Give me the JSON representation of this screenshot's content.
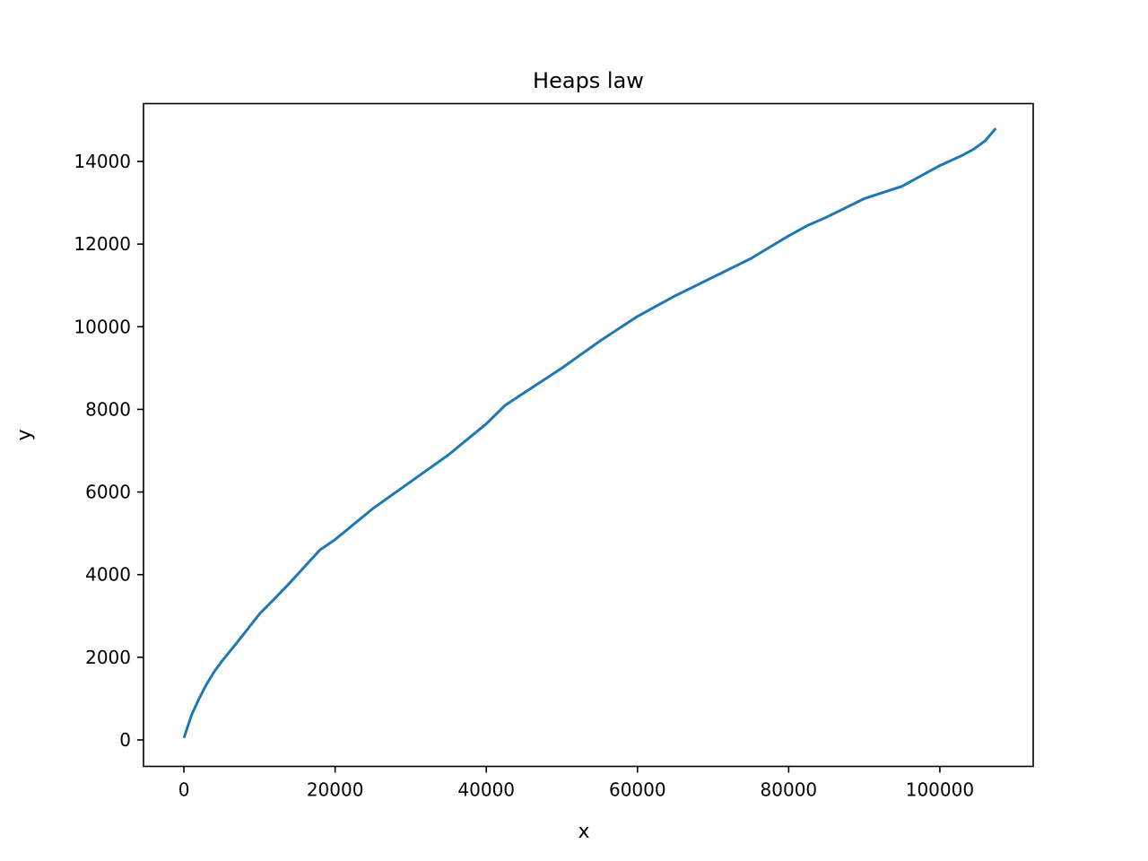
{
  "chart_data": {
    "type": "line",
    "title": "Heaps law",
    "xlabel": "x",
    "ylabel": "y",
    "xlim": [
      -5350,
      112350
    ],
    "ylim": [
      -640,
      15400
    ],
    "xticks": [
      0,
      20000,
      40000,
      60000,
      80000,
      100000
    ],
    "xtick_labels": [
      "0",
      "20000",
      "40000",
      "60000",
      "80000",
      "100000"
    ],
    "yticks": [
      0,
      2000,
      4000,
      6000,
      8000,
      10000,
      12000,
      14000
    ],
    "ytick_labels": [
      "0",
      "2000",
      "4000",
      "6000",
      "8000",
      "10000",
      "12000",
      "14000"
    ],
    "grid": false,
    "series_color": "#1f77b4",
    "x": [
      0,
      1000,
      2000,
      3000,
      4000,
      5000,
      7000,
      10000,
      12000,
      14000,
      16000,
      18000,
      20000,
      25000,
      30000,
      35000,
      40000,
      42500,
      45000,
      50000,
      55000,
      60000,
      65000,
      70000,
      75000,
      80000,
      82500,
      85000,
      90000,
      95000,
      100000,
      103000,
      104500,
      106000,
      107400
    ],
    "y": [
      50,
      600,
      1000,
      1350,
      1650,
      1900,
      2350,
      3050,
      3420,
      3800,
      4200,
      4600,
      4850,
      5600,
      6250,
      6900,
      7650,
      8100,
      8400,
      9000,
      9650,
      10250,
      10750,
      11200,
      11650,
      12200,
      12450,
      12650,
      13100,
      13400,
      13900,
      14150,
      14300,
      14500,
      14800
    ]
  }
}
